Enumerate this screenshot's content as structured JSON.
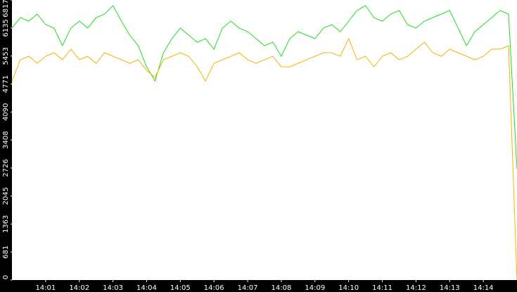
{
  "chart_data": {
    "type": "line",
    "x": [
      0,
      0.25,
      0.5,
      0.75,
      1,
      1.25,
      1.5,
      1.75,
      2,
      2.25,
      2.5,
      2.75,
      3,
      3.25,
      3.5,
      3.75,
      4,
      4.25,
      4.5,
      4.75,
      5,
      5.25,
      5.5,
      5.75,
      6,
      6.25,
      6.5,
      6.75,
      7,
      7.25,
      7.5,
      7.75,
      8,
      8.25,
      8.5,
      8.75,
      9,
      9.25,
      9.5,
      9.75,
      10,
      10.25,
      10.5,
      10.75,
      11,
      11.25,
      11.5,
      11.75,
      12,
      12.25,
      12.5,
      12.75,
      13,
      13.25,
      13.5,
      13.75,
      14,
      14.25,
      14.5,
      14.75,
      15
    ],
    "series": [
      {
        "color": "#22dd22",
        "values": [
          6133,
          6389,
          6304,
          6475,
          6218,
          6133,
          5704,
          6133,
          6304,
          6133,
          6389,
          6475,
          6681,
          6304,
          5961,
          5704,
          5190,
          4848,
          5533,
          5876,
          6133,
          5961,
          5790,
          5876,
          5619,
          6133,
          6304,
          6133,
          6047,
          5876,
          5704,
          5790,
          5447,
          5876,
          6047,
          5961,
          5876,
          6133,
          6218,
          6047,
          6304,
          6561,
          6681,
          6389,
          6304,
          6475,
          6561,
          6218,
          6133,
          6304,
          6389,
          6475,
          6561,
          6133,
          5704,
          6047,
          6218,
          6389,
          6561,
          6475,
          2707
        ]
      },
      {
        "color": "#f0b400",
        "values": [
          4848,
          5362,
          5447,
          5276,
          5447,
          5533,
          5362,
          5619,
          5362,
          5447,
          5276,
          5533,
          5447,
          5362,
          5276,
          5362,
          5105,
          4933,
          5362,
          5447,
          5533,
          5447,
          5190,
          4848,
          5276,
          5362,
          5447,
          5533,
          5362,
          5276,
          5362,
          5447,
          5190,
          5190,
          5276,
          5362,
          5447,
          5533,
          5533,
          5447,
          5876,
          5362,
          5447,
          5190,
          5447,
          5533,
          5362,
          5447,
          5619,
          5790,
          5533,
          5447,
          5619,
          5533,
          5447,
          5362,
          5447,
          5619,
          5619,
          5704,
          0
        ]
      }
    ],
    "xlim": [
      0,
      15
    ],
    "xticks": [
      {
        "value": 1,
        "label": "14:01"
      },
      {
        "value": 2,
        "label": "14:02"
      },
      {
        "value": 3,
        "label": "14:03"
      },
      {
        "value": 4,
        "label": "14:04"
      },
      {
        "value": 5,
        "label": "14:05"
      },
      {
        "value": 6,
        "label": "14:06"
      },
      {
        "value": 7,
        "label": "14:07"
      },
      {
        "value": 8,
        "label": "14:08"
      },
      {
        "value": 9,
        "label": "14:09"
      },
      {
        "value": 10,
        "label": "14:10"
      },
      {
        "value": 11,
        "label": "14:11"
      },
      {
        "value": 12,
        "label": "14:12"
      },
      {
        "value": 13,
        "label": "14:13"
      },
      {
        "value": 14,
        "label": "14:14"
      }
    ],
    "ylim": [
      0,
      6817
    ],
    "yticks": [
      0,
      681,
      1363,
      2045,
      2726,
      3408,
      4090,
      4771,
      5453,
      6135,
      6817
    ]
  }
}
